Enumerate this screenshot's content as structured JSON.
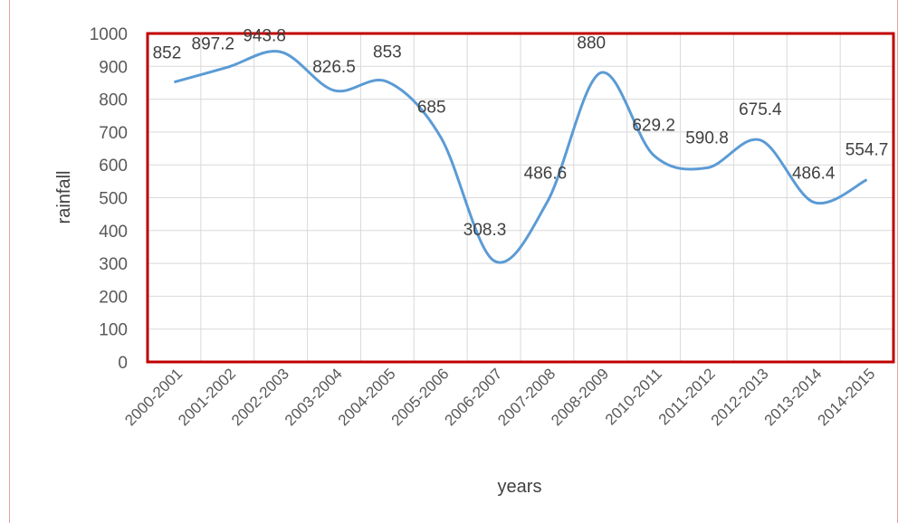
{
  "chart_data": {
    "type": "line",
    "smooth": true,
    "title": "",
    "xlabel": "years",
    "ylabel": "rainfall",
    "categories": [
      "2000-2001",
      "2001-2002",
      "2002-2003",
      "2003-2004",
      "2004-2005",
      "2005-2006",
      "2006-2007",
      "2007-2008",
      "2008-2009",
      "2010-2011",
      "2011-2012",
      "2012-2013",
      "2013-2014",
      "2014-2015"
    ],
    "series": [
      {
        "values": [
          852,
          897.2,
          943.8,
          826.5,
          853,
          685,
          308.3,
          486.6,
          880,
          629.2,
          590.8,
          675.4,
          486.4,
          554.7
        ]
      }
    ],
    "data_labels": [
      "852",
      "897.2",
      "943.8",
      "826.5",
      "853",
      "685",
      "308.3",
      "486.6",
      "880",
      "629.2",
      "590.8",
      "675.4",
      "486.4",
      "554.7"
    ],
    "ylim": [
      0,
      1000
    ],
    "yticks": [
      0,
      100,
      200,
      300,
      400,
      500,
      600,
      700,
      800,
      900,
      1000
    ],
    "grid": true,
    "legend": "none",
    "colors": {
      "line": "#5b9bd5",
      "plot_border": "#c00000",
      "grid": "#d9d9d9",
      "page_border": "#e6a3a3"
    }
  }
}
